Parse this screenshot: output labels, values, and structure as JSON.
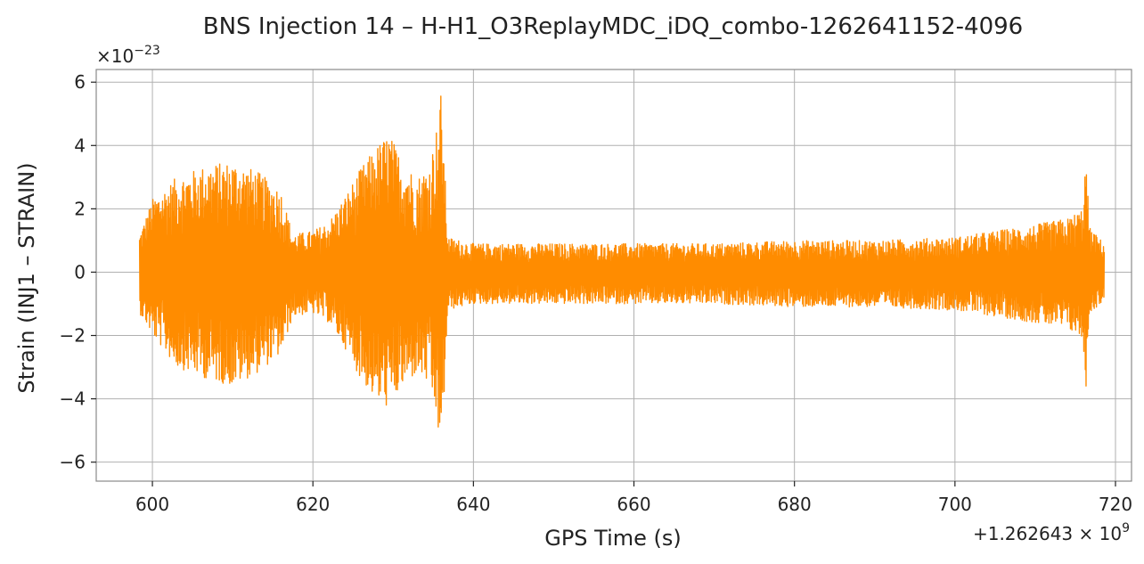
{
  "chart_data": {
    "type": "line",
    "title": "BNS Injection 14 – H-H1_O3ReplayMDC_iDQ_combo-1262641152-4096",
    "xlabel": "GPS Time (s)",
    "ylabel": "Strain (INJ1 – STRAIN)",
    "x_offset_label": "+1.262643 × 10",
    "x_offset_exponent": "9",
    "y_multiplier_label": "×10",
    "y_multiplier_exponent": "−23",
    "xlim": [
      593,
      722
    ],
    "ylim": [
      -6.6,
      6.4
    ],
    "xticks": [
      600,
      620,
      640,
      660,
      680,
      700,
      720
    ],
    "xtick_labels": [
      "600",
      "620",
      "640",
      "660",
      "680",
      "700",
      "720"
    ],
    "yticks": [
      -6,
      -4,
      -2,
      0,
      2,
      4,
      6
    ],
    "ytick_labels": [
      "−6",
      "−4",
      "−2",
      "0",
      "2",
      "4",
      "6"
    ],
    "grid": true,
    "series": [
      {
        "color": "#ff8c00",
        "envelope": {
          "x": [
            598.4,
            600,
            603,
            607,
            610,
            613,
            616,
            617.5,
            620,
            622,
            624,
            626,
            628,
            629.5,
            631,
            633,
            634.5,
            635.5,
            636,
            636.8,
            640,
            650,
            660,
            670,
            680,
            690,
            700,
            705,
            710,
            714,
            715.8,
            716.3,
            716.8,
            718.6
          ],
          "upper": [
            1.2,
            2.3,
            3.0,
            3.4,
            3.5,
            3.2,
            2.6,
            1.2,
            1.3,
            1.6,
            2.4,
            3.3,
            4.0,
            4.4,
            3.6,
            3.0,
            3.4,
            4.7,
            5.8,
            1.1,
            0.9,
            0.9,
            0.9,
            0.9,
            1.0,
            1.0,
            1.1,
            1.3,
            1.5,
            1.7,
            2.0,
            3.6,
            1.4,
            0.9
          ],
          "lower": [
            -1.3,
            -2.0,
            -3.0,
            -3.4,
            -3.6,
            -3.2,
            -2.6,
            -1.4,
            -1.3,
            -1.6,
            -2.4,
            -3.4,
            -4.1,
            -4.3,
            -3.7,
            -3.2,
            -3.6,
            -4.8,
            -6.1,
            -1.2,
            -1.0,
            -1.0,
            -1.0,
            -1.0,
            -1.1,
            -1.1,
            -1.2,
            -1.4,
            -1.6,
            -1.8,
            -2.1,
            -3.8,
            -1.3,
            -0.9
          ]
        }
      }
    ]
  }
}
